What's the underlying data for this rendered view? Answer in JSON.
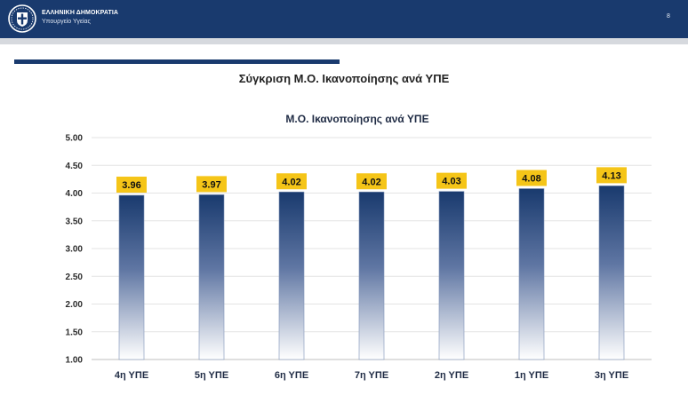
{
  "header": {
    "org_name": "ΕΛΛΗΝΙΚΗ ΔΗΜΟΚΡΑΤΙΑ",
    "ministry": "Υπουργείο Υγείας",
    "page_number": "8",
    "emblem_icon": "greek-cross-emblem-icon",
    "background": "#193a6e"
  },
  "slide_title": "Σύγκριση Μ.Ο. Ικανοποίησης ανά ΥΠΕ",
  "chart_data": {
    "type": "bar",
    "title": "Μ.Ο. Ικανοποίησης ανά ΥΠΕ",
    "categories": [
      "4η ΥΠΕ",
      "5η ΥΠΕ",
      "6η ΥΠΕ",
      "7η ΥΠΕ",
      "2η ΥΠΕ",
      "1η ΥΠΕ",
      "3η ΥΠΕ"
    ],
    "values": [
      3.96,
      3.97,
      4.02,
      4.02,
      4.03,
      4.08,
      4.13
    ],
    "value_labels": [
      "3.96",
      "3.97",
      "4.02",
      "4.02",
      "4.03",
      "4.08",
      "4.13"
    ],
    "ylim": [
      1.0,
      5.0
    ],
    "yticks": [
      "1.00",
      "1.50",
      "2.00",
      "2.50",
      "3.00",
      "3.50",
      "4.00",
      "4.50",
      "5.00"
    ],
    "xlabel": "",
    "ylabel": "",
    "grid": true,
    "legend": "none",
    "bar_color_top": "#193a6e",
    "bar_color_bottom": "#ffffff",
    "label_background": "#f5c518"
  }
}
